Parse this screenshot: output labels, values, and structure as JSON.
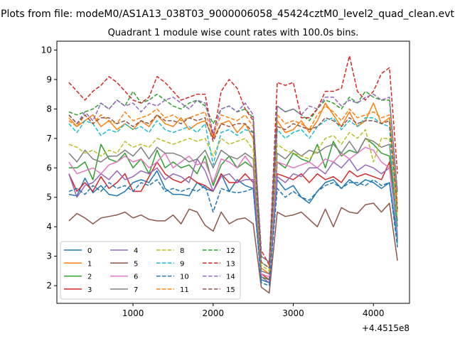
{
  "chart_data": {
    "type": "line",
    "suptitle": "Plots from file: modeM0/AS1A13_038T03_9000006058_45424cztM0_level2_quad_clean.evt",
    "title": "Quadrant 1 module wise count rates with 100.0s bins.",
    "xlabel": "",
    "ylabel": "",
    "x_offset_label": "+4.4515e8",
    "xlim": [
      50,
      4450
    ],
    "ylim": [
      1.4,
      10.3
    ],
    "x_ticks": [
      1000,
      2000,
      3000,
      4000
    ],
    "x_tick_labels": [
      "1000",
      "2000",
      "3000",
      "4000"
    ],
    "y_ticks": [
      2,
      3,
      4,
      5,
      6,
      7,
      8,
      9,
      10
    ],
    "y_tick_labels": [
      "2",
      "3",
      "4",
      "5",
      "6",
      "7",
      "8",
      "9",
      "10"
    ],
    "legend": {
      "placement": "lower-left",
      "columns": 4
    },
    "x": [
      200,
      300,
      400,
      500,
      600,
      700,
      800,
      900,
      1000,
      1100,
      1200,
      1300,
      1400,
      1500,
      1600,
      1700,
      1800,
      1900,
      2000,
      2100,
      2200,
      2300,
      2400,
      2500,
      2600,
      2700,
      2800,
      2900,
      3000,
      3100,
      3200,
      3300,
      3400,
      3500,
      3600,
      3700,
      3800,
      3900,
      4000,
      4100,
      4200,
      4300
    ],
    "series": [
      {
        "name": "0",
        "color": "#1f77b4",
        "dash": "solid",
        "values": [
          5.1,
          5.05,
          5.65,
          5.15,
          5.4,
          5.1,
          5.05,
          5.2,
          5.5,
          5.6,
          5.5,
          5.9,
          5.3,
          5.1,
          5.1,
          5.05,
          5.5,
          5.3,
          5.2,
          5.8,
          5.2,
          5.6,
          5.4,
          5.3,
          2.2,
          2.1,
          5.6,
          5.25,
          5.4,
          5.0,
          4.8,
          5.2,
          5.5,
          5.6,
          5.3,
          5.6,
          5.4,
          5.6,
          5.5,
          5.3,
          5.5,
          3.5
        ]
      },
      {
        "name": "1",
        "color": "#ff7f0e",
        "dash": "solid",
        "values": [
          7.7,
          7.4,
          7.6,
          7.8,
          7.4,
          7.6,
          7.3,
          7.5,
          7.3,
          7.6,
          7.4,
          7.8,
          7.5,
          7.4,
          7.7,
          7.3,
          7.5,
          7.6,
          7.0,
          7.5,
          7.6,
          7.2,
          7.5,
          7.0,
          2.6,
          2.4,
          7.6,
          7.2,
          7.3,
          7.6,
          7.2,
          7.6,
          8.2,
          7.8,
          7.4,
          7.9,
          7.4,
          7.6,
          8.2,
          7.5,
          7.7,
          4.5
        ]
      },
      {
        "name": "2",
        "color": "#2ca02c",
        "dash": "solid",
        "values": [
          6.0,
          6.0,
          6.2,
          5.6,
          6.8,
          6.3,
          6.2,
          6.5,
          6.0,
          6.3,
          5.8,
          6.6,
          6.0,
          6.2,
          6.0,
          6.1,
          5.8,
          6.4,
          5.4,
          6.1,
          6.4,
          6.0,
          6.2,
          6.0,
          2.3,
          2.2,
          6.2,
          6.0,
          6.5,
          6.3,
          6.2,
          6.8,
          6.0,
          6.9,
          6.4,
          6.6,
          6.5,
          7.0,
          6.8,
          6.5,
          6.4,
          4.0
        ]
      },
      {
        "name": "3",
        "color": "#d62728",
        "dash": "solid",
        "values": [
          5.8,
          5.2,
          5.5,
          5.2,
          5.7,
          5.3,
          5.5,
          5.8,
          5.2,
          5.2,
          5.7,
          6.2,
          5.8,
          5.6,
          5.5,
          5.7,
          5.5,
          5.4,
          5.2,
          5.8,
          5.5,
          5.5,
          5.8,
          5.5,
          2.4,
          2.2,
          5.8,
          5.7,
          5.6,
          5.8,
          5.5,
          5.8,
          5.6,
          5.7,
          5.5,
          5.9,
          5.7,
          5.8,
          5.7,
          5.6,
          6.2,
          3.6
        ]
      },
      {
        "name": "4",
        "color": "#9467bd",
        "dash": "solid",
        "values": [
          5.8,
          5.0,
          5.4,
          5.5,
          5.8,
          5.6,
          5.9,
          5.6,
          5.7,
          5.9,
          5.8,
          6.0,
          5.6,
          5.8,
          5.7,
          5.5,
          6.3,
          5.9,
          5.2,
          5.7,
          5.8,
          5.5,
          5.6,
          5.6,
          2.3,
          2.1,
          5.7,
          5.5,
          5.8,
          5.7,
          6.0,
          6.0,
          5.8,
          6.2,
          6.0,
          6.3,
          5.9,
          6.1,
          6.0,
          5.8,
          6.0,
          3.7
        ]
      },
      {
        "name": "5",
        "color": "#8c564b",
        "dash": "solid",
        "values": [
          4.2,
          4.45,
          4.3,
          4.1,
          4.3,
          4.35,
          4.4,
          4.5,
          4.3,
          4.4,
          4.25,
          4.2,
          4.2,
          4.4,
          4.1,
          4.6,
          4.5,
          4.05,
          3.85,
          4.5,
          4.1,
          4.25,
          4.3,
          4.1,
          1.95,
          1.75,
          4.5,
          4.35,
          4.4,
          4.5,
          4.25,
          4.0,
          4.6,
          4.0,
          4.65,
          4.5,
          4.45,
          4.75,
          4.8,
          4.5,
          4.8,
          2.85
        ]
      },
      {
        "name": "6",
        "color": "#e377c2",
        "dash": "solid",
        "values": [
          6.2,
          5.8,
          5.9,
          6.0,
          5.8,
          6.1,
          6.2,
          6.4,
          6.2,
          6.3,
          6.0,
          6.2,
          6.5,
          6.0,
          6.2,
          6.4,
          6.1,
          6.2,
          5.5,
          6.3,
          6.2,
          6.0,
          6.4,
          6.0,
          2.4,
          2.3,
          6.2,
          6.1,
          6.0,
          6.1,
          6.2,
          6.0,
          6.3,
          6.2,
          6.5,
          6.3,
          6.5,
          6.7,
          6.6,
          6.2,
          6.0,
          3.8
        ]
      },
      {
        "name": "7",
        "color": "#7f7f7f",
        "dash": "solid",
        "values": [
          6.5,
          6.2,
          6.6,
          6.3,
          6.2,
          6.4,
          6.4,
          6.6,
          6.4,
          6.7,
          6.3,
          6.7,
          6.5,
          6.5,
          6.4,
          6.2,
          6.3,
          6.6,
          6.0,
          6.6,
          6.4,
          6.3,
          6.5,
          6.3,
          2.5,
          2.4,
          6.5,
          6.3,
          6.6,
          6.4,
          6.6,
          6.5,
          6.7,
          6.8,
          6.5,
          6.9,
          6.5,
          7.0,
          6.9,
          6.7,
          6.8,
          4.2
        ]
      },
      {
        "name": "8",
        "color": "#bcbd22",
        "dash": "dashed",
        "values": [
          6.8,
          6.7,
          6.5,
          6.6,
          6.4,
          6.6,
          6.5,
          6.9,
          6.7,
          6.8,
          6.7,
          7.0,
          6.9,
          6.8,
          6.9,
          7.0,
          6.9,
          7.0,
          6.4,
          7.0,
          6.8,
          6.9,
          7.0,
          6.6,
          2.7,
          2.5,
          6.8,
          6.6,
          6.5,
          6.4,
          6.3,
          6.6,
          7.0,
          7.1,
          6.8,
          7.2,
          7.0,
          7.3,
          6.2,
          7.0,
          7.0,
          4.3
        ]
      },
      {
        "name": "9",
        "color": "#17becf",
        "dash": "dashed",
        "values": [
          7.5,
          7.2,
          7.6,
          7.5,
          7.1,
          7.3,
          7.2,
          7.5,
          7.3,
          7.4,
          7.2,
          7.6,
          7.3,
          7.2,
          7.3,
          7.4,
          7.2,
          7.5,
          6.1,
          7.2,
          7.3,
          7.1,
          7.3,
          7.2,
          2.8,
          2.6,
          7.3,
          7.0,
          7.2,
          7.3,
          7.0,
          7.4,
          7.6,
          7.7,
          7.3,
          7.6,
          7.4,
          7.7,
          7.7,
          7.5,
          7.4,
          3.4
        ]
      },
      {
        "name": "10",
        "color": "#1f77b4",
        "dash": "dashed",
        "values": [
          5.2,
          5.3,
          5.1,
          5.4,
          5.2,
          5.5,
          5.3,
          5.4,
          5.2,
          5.5,
          5.4,
          5.6,
          5.2,
          5.3,
          5.2,
          5.3,
          5.2,
          5.4,
          4.5,
          5.3,
          5.2,
          5.15,
          5.2,
          5.3,
          2.1,
          2.0,
          5.3,
          5.0,
          5.2,
          5.0,
          4.9,
          5.2,
          5.4,
          5.5,
          5.3,
          5.5,
          5.5,
          5.4,
          5.6,
          5.4,
          5.5,
          3.3
        ]
      },
      {
        "name": "11",
        "color": "#ff7f0e",
        "dash": "dashed",
        "values": [
          7.6,
          7.4,
          7.8,
          7.5,
          7.8,
          7.6,
          7.5,
          7.9,
          7.6,
          7.7,
          7.8,
          8.0,
          7.7,
          7.8,
          7.6,
          7.7,
          7.8,
          7.9,
          7.1,
          7.8,
          7.7,
          7.6,
          7.8,
          7.4,
          2.8,
          2.6,
          7.8,
          7.5,
          7.6,
          7.5,
          7.3,
          7.8,
          8.1,
          7.9,
          7.6,
          8.0,
          7.7,
          7.8,
          7.9,
          7.7,
          7.8,
          4.8
        ]
      },
      {
        "name": "12",
        "color": "#2ca02c",
        "dash": "dashed",
        "values": [
          7.9,
          7.8,
          7.9,
          8.0,
          8.2,
          8.0,
          8.3,
          8.1,
          8.6,
          8.2,
          8.3,
          8.5,
          8.3,
          8.1,
          8.0,
          8.2,
          8.3,
          8.1,
          7.5,
          8.0,
          8.1,
          7.9,
          8.0,
          7.7,
          3.0,
          2.8,
          8.1,
          7.9,
          8.0,
          7.8,
          7.6,
          8.0,
          8.3,
          8.2,
          8.0,
          8.4,
          8.2,
          8.6,
          8.4,
          8.3,
          8.3,
          5.1
        ]
      },
      {
        "name": "13",
        "color": "#d62728",
        "dash": "dashed",
        "values": [
          8.9,
          8.6,
          8.3,
          8.6,
          8.8,
          9.1,
          8.9,
          8.6,
          8.3,
          8.2,
          8.4,
          9.1,
          8.9,
          8.6,
          8.3,
          8.4,
          8.5,
          8.5,
          7.0,
          8.6,
          9.0,
          8.7,
          8.0,
          7.6,
          3.2,
          2.7,
          8.9,
          8.8,
          8.9,
          7.7,
          7.7,
          8.0,
          8.6,
          8.6,
          8.7,
          9.8,
          8.6,
          8.3,
          8.6,
          9.2,
          9.4,
          5.8
        ]
      },
      {
        "name": "14",
        "color": "#9467bd",
        "dash": "dashed",
        "values": [
          7.8,
          7.5,
          7.9,
          7.6,
          8.2,
          8.0,
          8.3,
          8.1,
          8.2,
          7.9,
          8.2,
          8.1,
          8.3,
          8.4,
          8.2,
          8.0,
          8.3,
          8.2,
          7.2,
          8.0,
          8.1,
          7.9,
          8.2,
          7.8,
          3.0,
          2.8,
          8.1,
          7.9,
          8.0,
          7.8,
          8.1,
          8.0,
          8.4,
          8.4,
          8.1,
          8.3,
          8.2,
          8.4,
          8.5,
          8.3,
          8.4,
          5.2
        ]
      },
      {
        "name": "15",
        "color": "#8c564b",
        "dash": "dashed",
        "values": [
          7.8,
          7.5,
          7.8,
          7.5,
          7.7,
          7.7,
          7.5,
          7.6,
          7.4,
          7.6,
          7.5,
          7.8,
          7.6,
          7.6,
          7.5,
          7.7,
          7.6,
          7.7,
          6.9,
          7.5,
          7.4,
          7.5,
          7.5,
          7.2,
          2.8,
          2.6,
          7.4,
          7.3,
          7.5,
          7.4,
          7.3,
          7.4,
          7.7,
          7.6,
          7.4,
          7.7,
          7.5,
          7.6,
          7.6,
          7.5,
          7.6,
          4.6
        ]
      }
    ]
  }
}
